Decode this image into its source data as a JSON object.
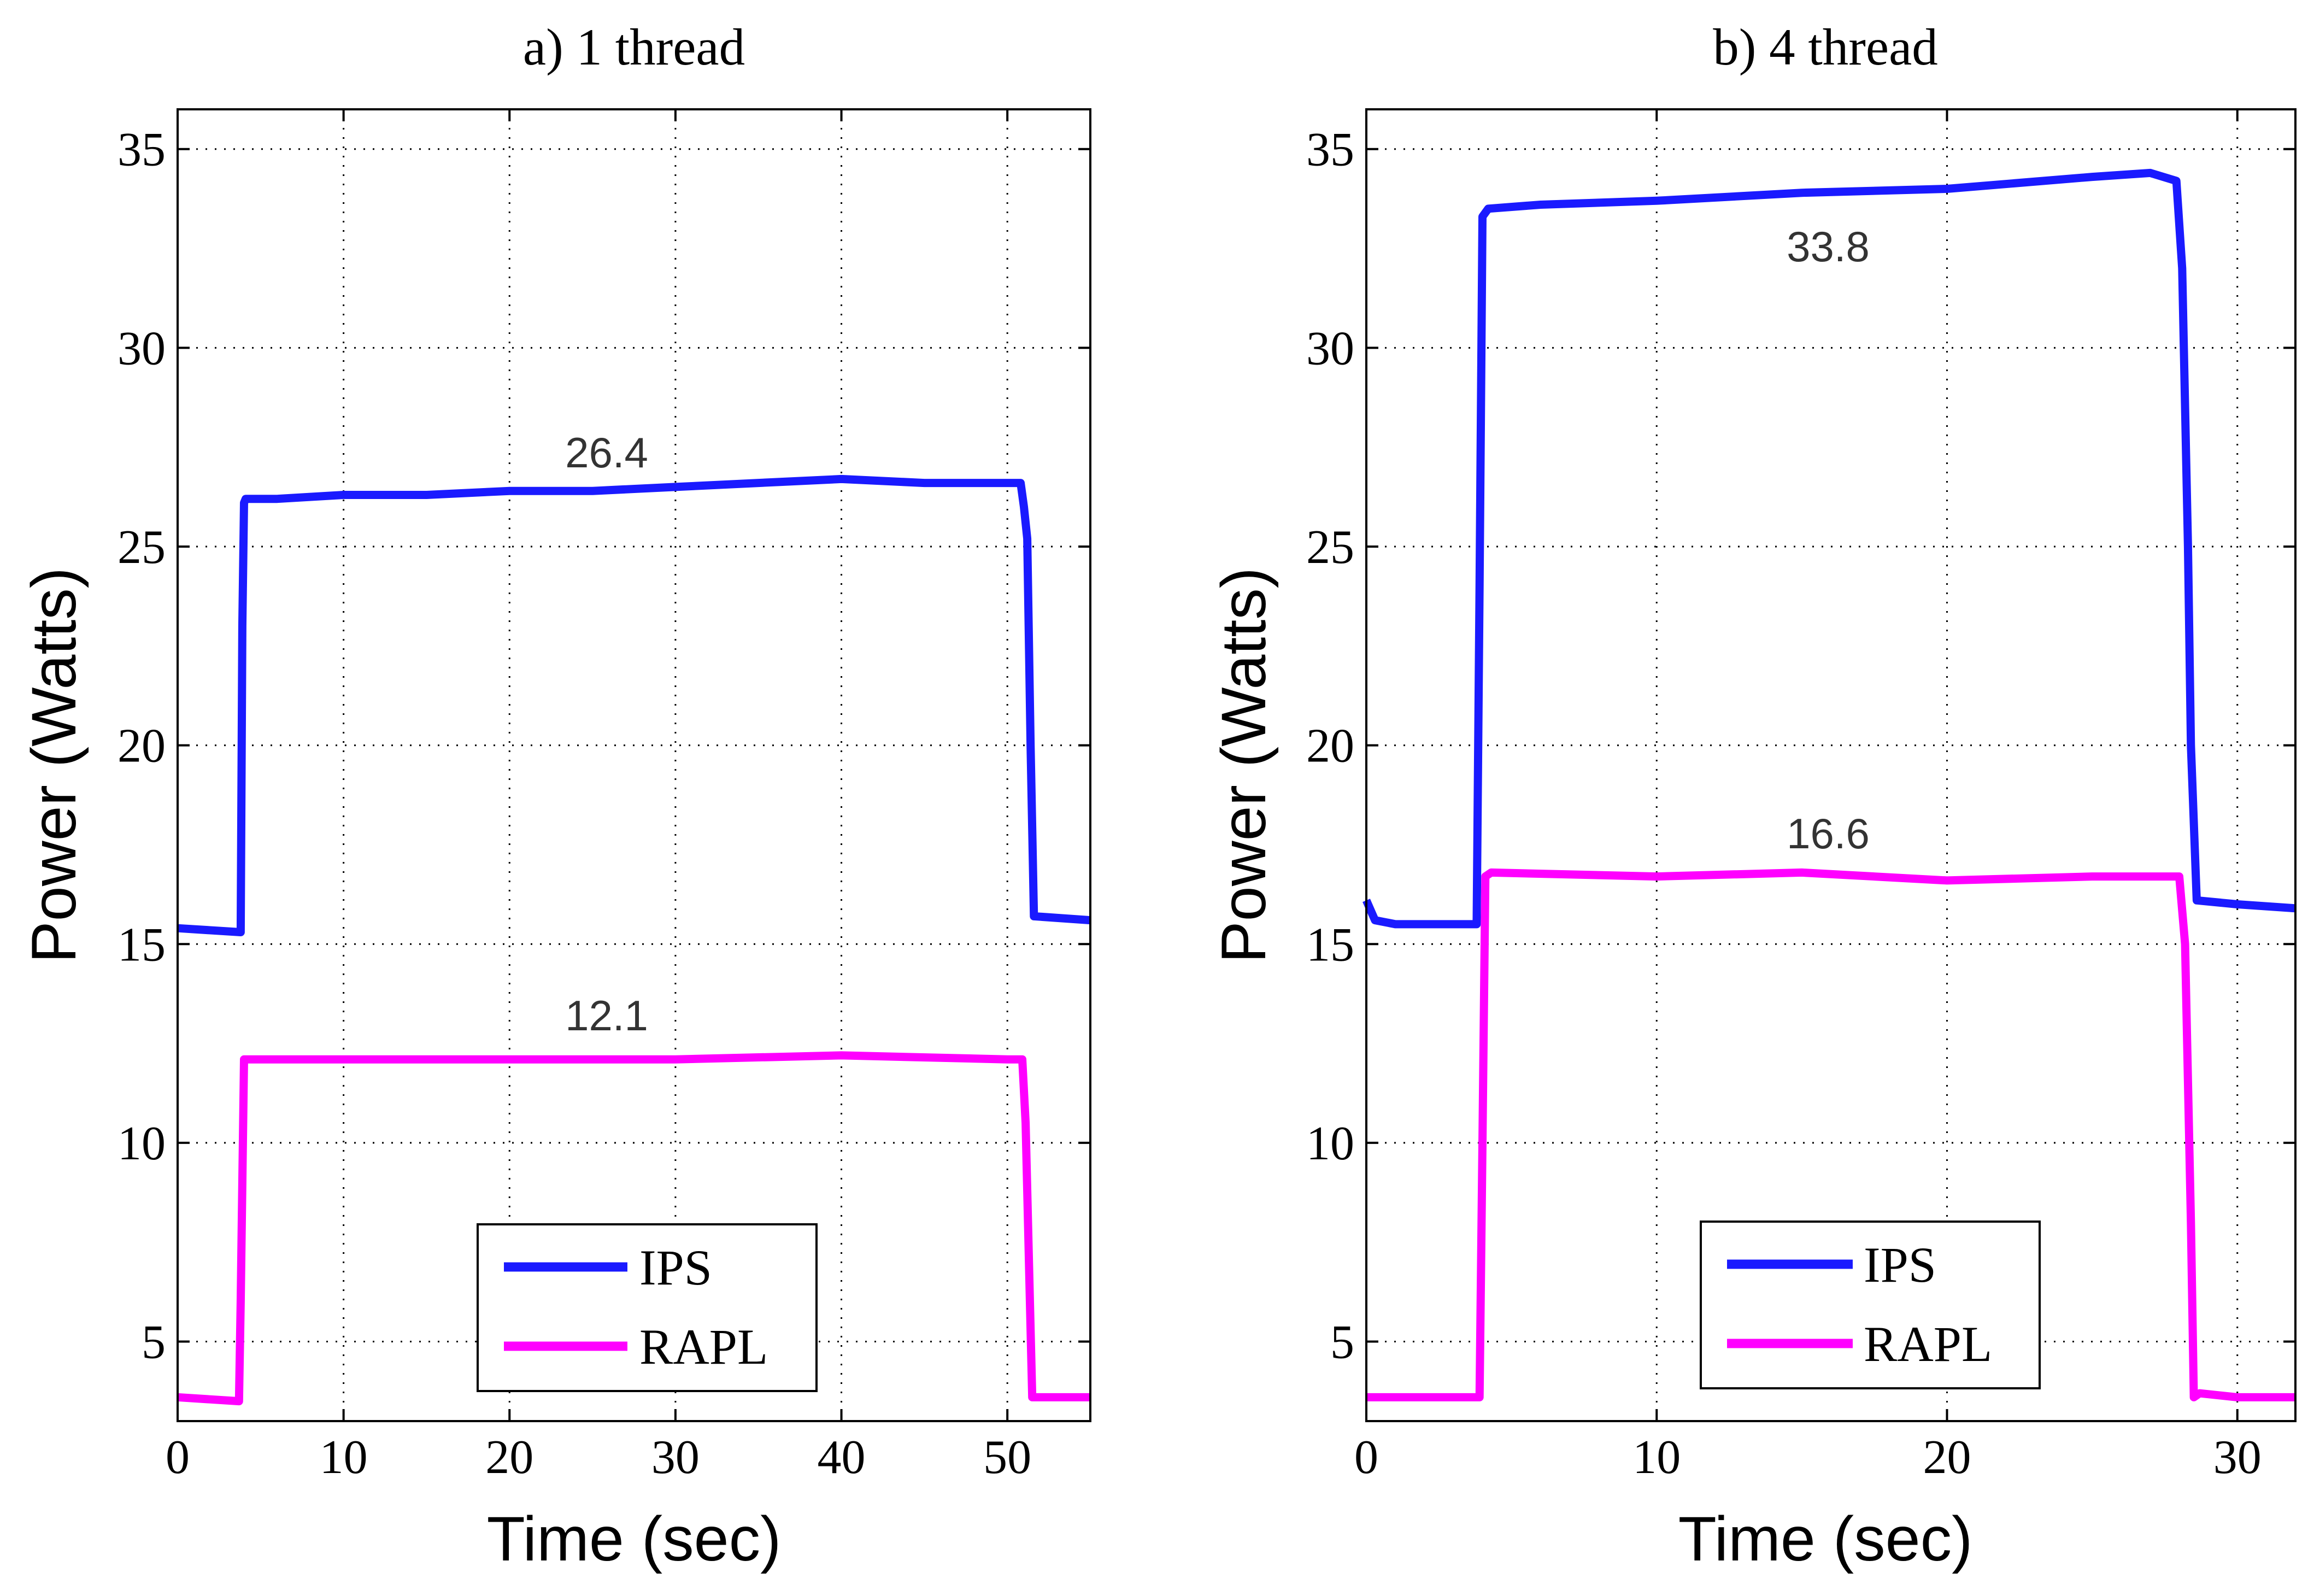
{
  "chart_data": [
    {
      "type": "line",
      "title": "a) 1 thread",
      "xlabel": "Time (sec)",
      "ylabel": "Power (Watts)",
      "xlim": [
        0,
        55
      ],
      "ylim": [
        3,
        36
      ],
      "xticks": [
        0,
        10,
        20,
        30,
        40,
        50
      ],
      "yticks": [
        5,
        10,
        15,
        20,
        25,
        30,
        35
      ],
      "grid": true,
      "legend_position": "bottom-center",
      "series": [
        {
          "name": "IPS",
          "color": "#1a1aff",
          "x": [
            0,
            3.8,
            3.9,
            4.0,
            4.1,
            6,
            10,
            15,
            20,
            25,
            30,
            35,
            40,
            45,
            50,
            50.8,
            51.0,
            51.2,
            51.4,
            51.6,
            55
          ],
          "y": [
            15.4,
            15.3,
            23.0,
            26.1,
            26.2,
            26.2,
            26.3,
            26.3,
            26.4,
            26.4,
            26.5,
            26.6,
            26.7,
            26.6,
            26.6,
            26.6,
            26.0,
            25.2,
            20.0,
            15.7,
            15.6
          ]
        },
        {
          "name": "RAPL",
          "color": "#ff00ff",
          "x": [
            0,
            3.7,
            3.8,
            4.0,
            4.2,
            10,
            20,
            30,
            40,
            50,
            50.9,
            51.1,
            51.3,
            51.5,
            55
          ],
          "y": [
            3.6,
            3.5,
            6.0,
            12.1,
            12.1,
            12.1,
            12.1,
            12.1,
            12.2,
            12.1,
            12.1,
            10.5,
            7.0,
            3.6,
            3.6
          ]
        }
      ],
      "annotations": [
        "26.4",
        "12.1"
      ]
    },
    {
      "type": "line",
      "title": "b) 4 thread",
      "xlabel": "Time (sec)",
      "ylabel": "Power (Watts)",
      "xlim": [
        0,
        32
      ],
      "ylim": [
        3,
        36
      ],
      "xticks": [
        0,
        10,
        20,
        30
      ],
      "yticks": [
        5,
        10,
        15,
        20,
        25,
        30,
        35
      ],
      "grid": true,
      "legend_position": "bottom-center",
      "series": [
        {
          "name": "IPS",
          "color": "#1a1aff",
          "x": [
            0,
            0.3,
            1,
            3.8,
            3.9,
            4.0,
            4.2,
            6,
            10,
            15,
            20,
            25,
            27,
            27.9,
            28.1,
            28.3,
            28.4,
            28.6,
            30,
            32
          ],
          "y": [
            16.1,
            15.6,
            15.5,
            15.5,
            24.0,
            33.3,
            33.5,
            33.6,
            33.7,
            33.9,
            34.0,
            34.3,
            34.4,
            34.2,
            32.0,
            25.0,
            20.0,
            16.1,
            16.0,
            15.9
          ]
        },
        {
          "name": "RAPL",
          "color": "#ff00ff",
          "x": [
            0,
            3.9,
            4.0,
            4.1,
            4.3,
            10,
            15,
            20,
            25,
            28,
            28.2,
            28.4,
            28.5,
            28.7,
            30,
            32
          ],
          "y": [
            3.6,
            3.6,
            10.0,
            16.7,
            16.8,
            16.7,
            16.8,
            16.6,
            16.7,
            16.7,
            15.0,
            8.0,
            3.6,
            3.7,
            3.6,
            3.6
          ]
        }
      ],
      "annotations": [
        "33.8",
        "16.6"
      ]
    }
  ]
}
